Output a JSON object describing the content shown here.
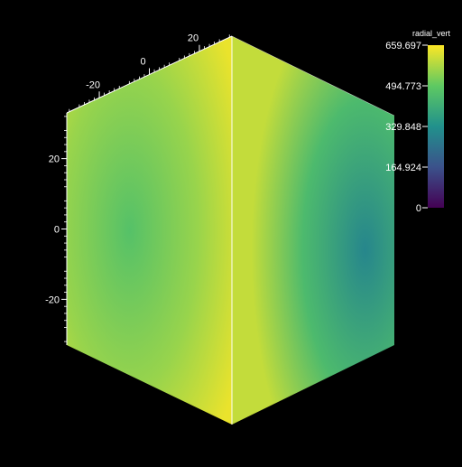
{
  "chart_data": {
    "type": "heatmap",
    "title": "",
    "colorbar": {
      "title": "radial_vert",
      "colormap": "viridis",
      "range": [
        0,
        659.697
      ],
      "ticks": [
        {
          "label": "659.697",
          "value": 659.697
        },
        {
          "label": "494.773",
          "value": 494.773
        },
        {
          "label": "329.848",
          "value": 329.848
        },
        {
          "label": "164.924",
          "value": 164.924
        },
        {
          "label": "0",
          "value": 0
        }
      ]
    },
    "axes": {
      "vertical_axis": {
        "range": [
          -33,
          33
        ],
        "ticks": [
          {
            "label": "20",
            "value": 20
          },
          {
            "label": "0",
            "value": 0
          },
          {
            "label": "-20",
            "value": -20
          }
        ]
      },
      "top_left_edge_axis": {
        "range": [
          -33,
          33
        ],
        "ticks": [
          {
            "label": "-20",
            "value": -20
          },
          {
            "label": "0",
            "value": 0
          },
          {
            "label": "20",
            "value": 20
          }
        ]
      }
    },
    "surface": {
      "left_face": {
        "edge_value": 640,
        "center_value": 470
      },
      "right_face": {
        "edge_value": 600,
        "center_value": 300
      }
    }
  },
  "colors": {
    "background": "#000000",
    "viridis": [
      "#440154",
      "#3b528b",
      "#21918c",
      "#5ec962",
      "#fde725"
    ]
  }
}
